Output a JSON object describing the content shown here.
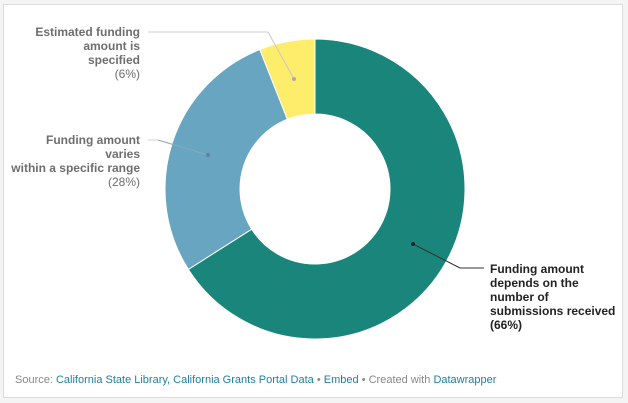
{
  "chart_data": {
    "type": "pie",
    "subtype": "donut",
    "title": "",
    "categories": [
      "Funding amount depends on the number of submissions received",
      "Funding amount varies within a specific range",
      "Estimated funding amount is specified"
    ],
    "values": [
      66,
      28,
      6
    ],
    "unit": "%",
    "colors": [
      "#1a857a",
      "#67a5c0",
      "#fded6b"
    ],
    "start_angle_deg": 0,
    "direction": "clockwise",
    "labels": [
      {
        "text": "Funding amount depends on the number of submissions received",
        "pct": "(66%)"
      },
      {
        "text": "Funding amount varies within a specific range",
        "pct": "(28%)"
      },
      {
        "text": "Estimated funding amount is specified",
        "pct": "(6%)"
      }
    ]
  },
  "labels": {
    "estimated": {
      "line1": "Estimated funding",
      "line2": "amount is specified",
      "pct": "(6%)"
    },
    "varies": {
      "line1": "Funding amount varies",
      "line2": "within a specific range",
      "pct": "(28%)"
    },
    "depends": {
      "line1": "Funding amount",
      "line2": "depends on the",
      "line3": "number of",
      "line4": "submissions received",
      "pct": "(66%)"
    }
  },
  "footer": {
    "source_label": "Source:",
    "source_link": "California State Library, California Grants Portal Data",
    "sep1": "•",
    "embed": "Embed",
    "sep2": "•",
    "created_with": "Created with",
    "datawrapper": "Datawrapper"
  }
}
